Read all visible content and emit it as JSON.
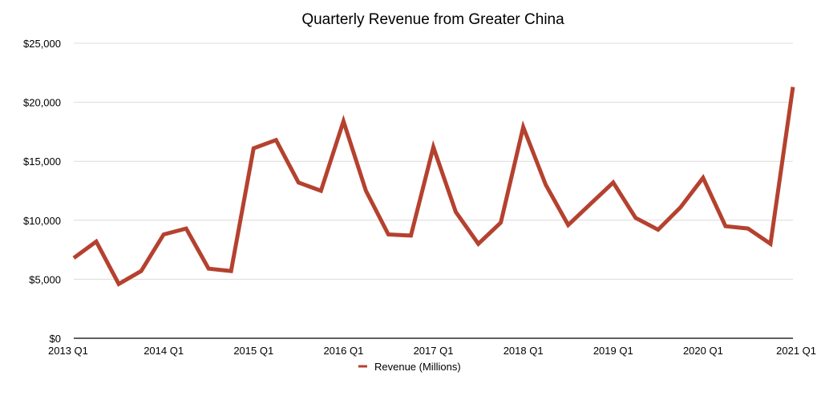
{
  "chart_data": {
    "type": "line",
    "title": "Quarterly Revenue from Greater China",
    "xlabel": "",
    "ylabel": "",
    "ylim": [
      0,
      25000
    ],
    "yticks": [
      0,
      5000,
      10000,
      15000,
      20000,
      25000
    ],
    "ytick_labels": [
      "$0",
      "$5,000",
      "$10,000",
      "$15,000",
      "$20,000",
      "$25,000"
    ],
    "xtick_labels": [
      "2013 Q1",
      "2014 Q1",
      "2015 Q1",
      "2016 Q1",
      "2017 Q1",
      "2018 Q1",
      "2019 Q1",
      "2020 Q1",
      "2021 Q1"
    ],
    "xtick_indices": [
      0,
      4,
      8,
      12,
      16,
      20,
      24,
      28,
      32
    ],
    "legend_position": "bottom-center",
    "grid": true,
    "series": [
      {
        "name": "Revenue (Millions)",
        "color": "#b5412f",
        "values": [
          6800,
          8200,
          4600,
          5700,
          8800,
          9300,
          5900,
          5700,
          16100,
          16800,
          13200,
          12500,
          18400,
          12500,
          8800,
          8700,
          16200,
          10700,
          8000,
          9800,
          17900,
          13000,
          9600,
          11400,
          13200,
          10200,
          9200,
          11100,
          13600,
          9500,
          9300,
          8000,
          21300
        ]
      }
    ]
  }
}
